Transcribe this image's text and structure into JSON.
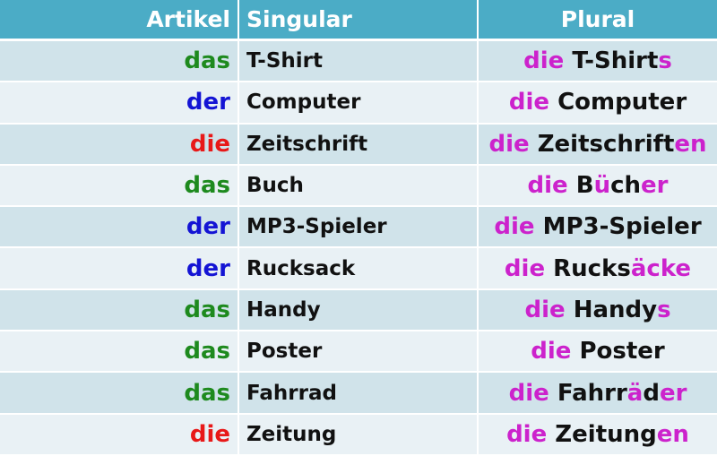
{
  "header": {
    "artikel": "Artikel",
    "singular": "Singular",
    "plural": "Plural"
  },
  "colors": {
    "header_bg": "#4bacc6",
    "row_dark": "#d0e3ea",
    "row_light": "#e9f1f5",
    "das": "#1e8a1e",
    "der": "#1414d4",
    "die": "#e81818",
    "plural_highlight": "#cc22cc"
  },
  "rows": [
    {
      "artikel": "das",
      "singular": "T-Shirt",
      "pl_article": "die",
      "pl_stem": "T-Shirt",
      "pl_umlaut": "",
      "pl_mid": "",
      "pl_ending": "s"
    },
    {
      "artikel": "der",
      "singular": "Computer",
      "pl_article": "die",
      "pl_stem": "Computer",
      "pl_umlaut": "",
      "pl_mid": "",
      "pl_ending": ""
    },
    {
      "artikel": "die",
      "singular": "Zeitschrift",
      "pl_article": "die",
      "pl_stem": "Zeitschrift",
      "pl_umlaut": "",
      "pl_mid": "",
      "pl_ending": "en"
    },
    {
      "artikel": "das",
      "singular": "Buch",
      "pl_article": "die",
      "pl_stem": "B",
      "pl_umlaut": "ü",
      "pl_mid": "ch",
      "pl_ending": "er"
    },
    {
      "artikel": "der",
      "singular": "MP3-Spieler",
      "pl_article": "die",
      "pl_stem": "MP3-Spieler",
      "pl_umlaut": "",
      "pl_mid": "",
      "pl_ending": ""
    },
    {
      "artikel": "der",
      "singular": "Rucksack",
      "pl_article": "die",
      "pl_stem": "Rucks",
      "pl_umlaut": "äcke",
      "pl_mid": "",
      "pl_ending": ""
    },
    {
      "artikel": "das",
      "singular": "Handy",
      "pl_article": "die",
      "pl_stem": "Handy",
      "pl_umlaut": "",
      "pl_mid": "",
      "pl_ending": "s"
    },
    {
      "artikel": "das",
      "singular": "Poster",
      "pl_article": "die",
      "pl_stem": "Poster",
      "pl_umlaut": "",
      "pl_mid": "",
      "pl_ending": ""
    },
    {
      "artikel": "das",
      "singular": "Fahrrad",
      "pl_article": "die",
      "pl_stem": "Fahrr",
      "pl_umlaut": "ä",
      "pl_mid": "d",
      "pl_ending": "er"
    },
    {
      "artikel": "die",
      "singular": "Zeitung",
      "pl_article": "die",
      "pl_stem": "Zeitung",
      "pl_umlaut": "",
      "pl_mid": "",
      "pl_ending": "en"
    }
  ]
}
